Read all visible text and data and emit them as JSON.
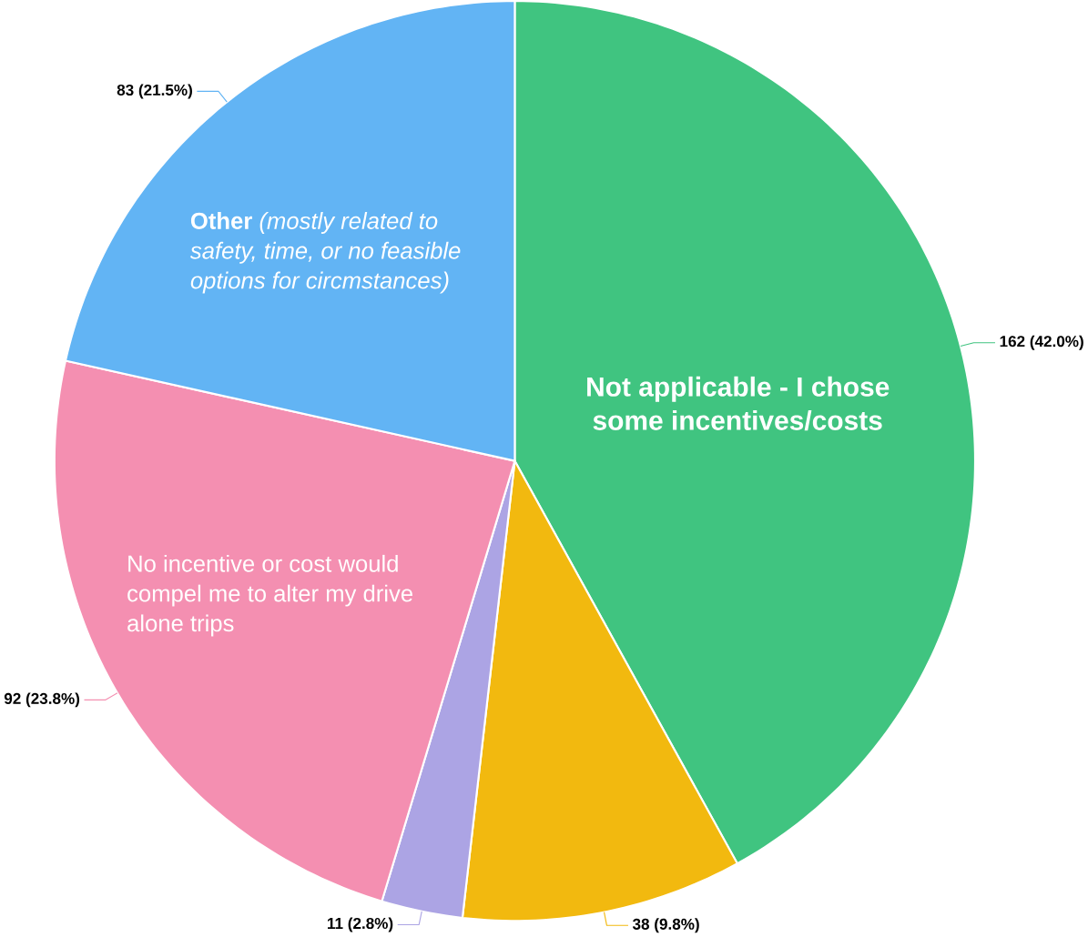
{
  "chart_data": {
    "type": "pie",
    "categories": [
      "**Not applicable - I chose some incentives/costs**",
      null,
      null,
      "No incentive or cost would compel me to alter my drive alone trips",
      "**Other** *(mostly related to safety, time, or no feasible options for circmstances)*"
    ],
    "values": [
      162,
      38,
      11,
      92,
      83
    ],
    "value_labels": [
      "162 (42.0%)",
      "38 (9.8%)",
      "11 (2.8%)",
      "92 (23.8%)",
      "83 (21.5%)"
    ],
    "colors": [
      "#40c480",
      "#f2b90f",
      "#aca4e4",
      "#f48fb1",
      "#62b4f4"
    ]
  }
}
